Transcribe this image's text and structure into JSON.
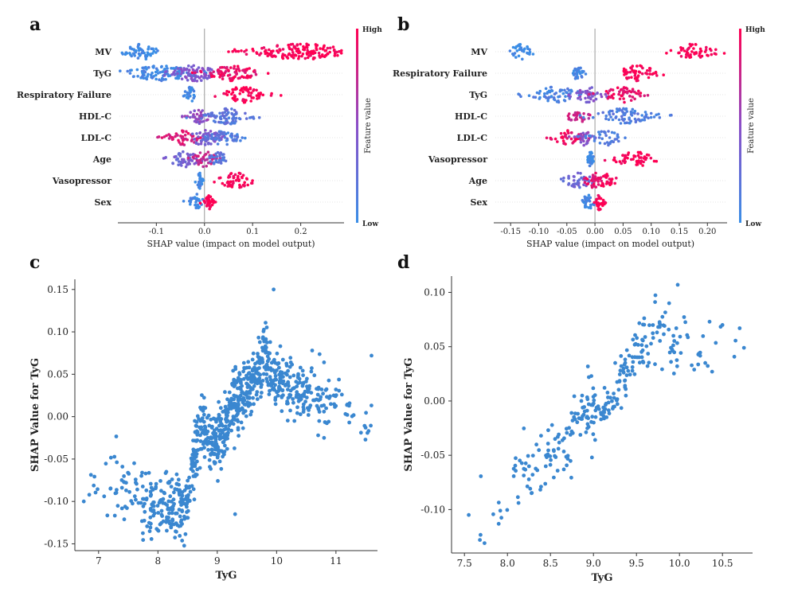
{
  "chart_data": [
    {
      "id": "a",
      "type": "scatter",
      "subtype": "shap-beeswarm",
      "panel_label": "a",
      "xlabel": "SHAP value (impact on model output)",
      "xlim": [
        -0.18,
        0.29
      ],
      "xticks": [
        -0.1,
        0.0,
        0.1,
        0.2
      ],
      "xtick_labels": [
        "-0.1",
        "0.0",
        "0.1",
        "0.2"
      ],
      "colorbar": {
        "title": "Feature value",
        "high": "High",
        "low": "Low",
        "low_color": "#3a8ee6",
        "high_color": "#ff0052"
      },
      "features": [
        {
          "name": "MV",
          "segments": [
            [
              -0.13,
              0.02,
              0.01
            ],
            [
              0.2,
              0.065,
              1.0
            ]
          ]
        },
        {
          "name": "TyG",
          "segments": [
            [
              -0.09,
              0.04,
              0.05
            ],
            [
              -0.02,
              0.03,
              0.45
            ],
            [
              0.06,
              0.03,
              0.92
            ]
          ]
        },
        {
          "name": "Respiratory Failure",
          "segments": [
            [
              -0.03,
              0.006,
              0.05
            ],
            [
              0.08,
              0.025,
              1.0
            ]
          ]
        },
        {
          "name": "HDL-C",
          "segments": [
            [
              -0.015,
              0.015,
              0.5
            ],
            [
              0.05,
              0.03,
              0.2
            ]
          ]
        },
        {
          "name": "LDL-C",
          "segments": [
            [
              -0.045,
              0.02,
              0.85
            ],
            [
              0.0,
              0.02,
              0.4
            ],
            [
              0.04,
              0.02,
              0.15
            ]
          ]
        },
        {
          "name": "Age",
          "segments": [
            [
              -0.04,
              0.02,
              0.35
            ],
            [
              0.0,
              0.015,
              0.75
            ],
            [
              0.03,
              0.01,
              0.2
            ]
          ]
        },
        {
          "name": "Vasopressor",
          "segments": [
            [
              -0.01,
              0.003,
              0.05
            ],
            [
              0.065,
              0.02,
              1.0
            ]
          ]
        },
        {
          "name": "Sex",
          "segments": [
            [
              -0.015,
              0.01,
              0.05
            ],
            [
              0.01,
              0.005,
              1.0
            ]
          ]
        }
      ]
    },
    {
      "id": "b",
      "type": "scatter",
      "subtype": "shap-beeswarm",
      "panel_label": "b",
      "xlabel": "SHAP value (impact on model output)",
      "xlim": [
        -0.18,
        0.235
      ],
      "xticks": [
        -0.15,
        -0.1,
        -0.05,
        0.0,
        0.05,
        0.1,
        0.15,
        0.2
      ],
      "xtick_labels": [
        "-0.15",
        "-0.10",
        "-0.05",
        "0.00",
        "0.05",
        "0.10",
        "0.15",
        "0.20"
      ],
      "colorbar": {
        "title": "Feature value",
        "high": "High",
        "low": "Low",
        "low_color": "#3a8ee6",
        "high_color": "#ff0052"
      },
      "features": [
        {
          "name": "MV",
          "segments": [
            [
              -0.13,
              0.012,
              0.01
            ],
            [
              0.175,
              0.02,
              1.0
            ]
          ]
        },
        {
          "name": "Respiratory Failure",
          "segments": [
            [
              -0.03,
              0.005,
              0.05
            ],
            [
              0.075,
              0.02,
              1.0
            ]
          ]
        },
        {
          "name": "TyG",
          "segments": [
            [
              -0.07,
              0.025,
              0.1
            ],
            [
              -0.01,
              0.015,
              0.45
            ],
            [
              0.05,
              0.02,
              0.9
            ]
          ]
        },
        {
          "name": "HDL-C",
          "segments": [
            [
              -0.03,
              0.01,
              0.75
            ],
            [
              0.05,
              0.03,
              0.15
            ]
          ]
        },
        {
          "name": "LDL-C",
          "segments": [
            [
              -0.05,
              0.015,
              0.95
            ],
            [
              -0.02,
              0.01,
              0.5
            ],
            [
              0.02,
              0.015,
              0.15
            ]
          ]
        },
        {
          "name": "Vasopressor",
          "segments": [
            [
              -0.008,
              0.003,
              0.05
            ],
            [
              0.07,
              0.02,
              1.0
            ]
          ]
        },
        {
          "name": "Age",
          "segments": [
            [
              -0.03,
              0.015,
              0.3
            ],
            [
              0.0,
              0.01,
              0.9
            ],
            [
              0.02,
              0.01,
              0.95
            ]
          ]
        },
        {
          "name": "Sex",
          "segments": [
            [
              -0.012,
              0.006,
              0.05
            ],
            [
              0.008,
              0.004,
              1.0
            ]
          ]
        }
      ]
    },
    {
      "id": "c",
      "type": "scatter",
      "subtype": "shap-dependence",
      "panel_label": "c",
      "xlabel": "TyG",
      "ylabel": "SHAP Value for TyG",
      "xlim": [
        6.6,
        11.7
      ],
      "ylim": [
        -0.158,
        0.162
      ],
      "xticks": [
        7,
        8,
        9,
        10,
        11
      ],
      "xtick_labels": [
        "7",
        "8",
        "9",
        "10",
        "11"
      ],
      "yticks": [
        -0.15,
        -0.1,
        -0.05,
        0.0,
        0.05,
        0.1,
        0.15
      ],
      "ytick_labels": [
        "-0.15",
        "-0.10",
        "-0.05",
        "0.00",
        "0.05",
        "0.10",
        "0.15"
      ],
      "point_color": "#3a87d0",
      "anchors": [
        [
          6.8,
          -0.1
        ],
        [
          7.1,
          -0.085
        ],
        [
          7.5,
          -0.09
        ],
        [
          7.8,
          -0.105
        ],
        [
          8.2,
          -0.11
        ],
        [
          8.5,
          -0.1
        ],
        [
          8.58,
          -0.06
        ],
        [
          8.7,
          -0.02
        ],
        [
          8.9,
          -0.025
        ],
        [
          9.1,
          -0.02
        ],
        [
          9.3,
          0.02
        ],
        [
          9.5,
          0.03
        ],
        [
          9.8,
          0.07
        ],
        [
          10.0,
          0.04
        ],
        [
          10.4,
          0.03
        ],
        [
          11.0,
          0.02
        ],
        [
          11.6,
          0.0
        ]
      ],
      "outliers": [
        [
          6.75,
          -0.1
        ],
        [
          7.2,
          -0.085
        ],
        [
          7.6,
          -0.055
        ],
        [
          9.95,
          0.15
        ],
        [
          10.6,
          0.078
        ],
        [
          10.8,
          0.064
        ],
        [
          11.0,
          0.032
        ],
        [
          11.1,
          0.026
        ],
        [
          11.6,
          0.072
        ],
        [
          11.5,
          -0.013
        ],
        [
          11.55,
          -0.017
        ],
        [
          10.8,
          -0.025
        ],
        [
          10.7,
          -0.022
        ],
        [
          10.3,
          -0.005
        ],
        [
          9.3,
          -0.115
        ]
      ],
      "n_points": 900,
      "noise": 0.018
    },
    {
      "id": "d",
      "type": "scatter",
      "subtype": "shap-dependence",
      "panel_label": "d",
      "xlabel": "TyG",
      "ylabel": "SHAP Value for TyG",
      "xlim": [
        7.35,
        10.85
      ],
      "ylim": [
        -0.14,
        0.115
      ],
      "xticks": [
        7.5,
        8.0,
        8.5,
        9.0,
        9.5,
        10.0,
        10.5
      ],
      "xtick_labels": [
        "7.5",
        "8.0",
        "8.5",
        "9.0",
        "9.5",
        "10.0",
        "10.5"
      ],
      "yticks": [
        -0.1,
        -0.05,
        0.0,
        0.05,
        0.1
      ],
      "ytick_labels": [
        "-0.10",
        "-0.05",
        "0.00",
        "0.05",
        "0.10"
      ],
      "point_color": "#3a87d0",
      "anchors": [
        [
          7.6,
          -0.12
        ],
        [
          7.9,
          -0.1
        ],
        [
          8.1,
          -0.07
        ],
        [
          8.4,
          -0.06
        ],
        [
          8.7,
          -0.04
        ],
        [
          8.9,
          -0.015
        ],
        [
          9.2,
          -0.01
        ],
        [
          9.3,
          0.02
        ],
        [
          9.5,
          0.045
        ],
        [
          9.7,
          0.06
        ],
        [
          10.0,
          0.05
        ],
        [
          10.8,
          0.05
        ]
      ],
      "outliers": [
        [
          7.55,
          -0.105
        ],
        [
          7.68,
          -0.128
        ],
        [
          9.98,
          0.107
        ],
        [
          10.35,
          0.073
        ],
        [
          10.5,
          0.07
        ],
        [
          10.7,
          0.067
        ],
        [
          10.75,
          0.049
        ],
        [
          10.3,
          0.035
        ],
        [
          10.38,
          0.027
        ],
        [
          9.88,
          0.09
        ]
      ],
      "n_points": 280,
      "noise": 0.014
    }
  ]
}
